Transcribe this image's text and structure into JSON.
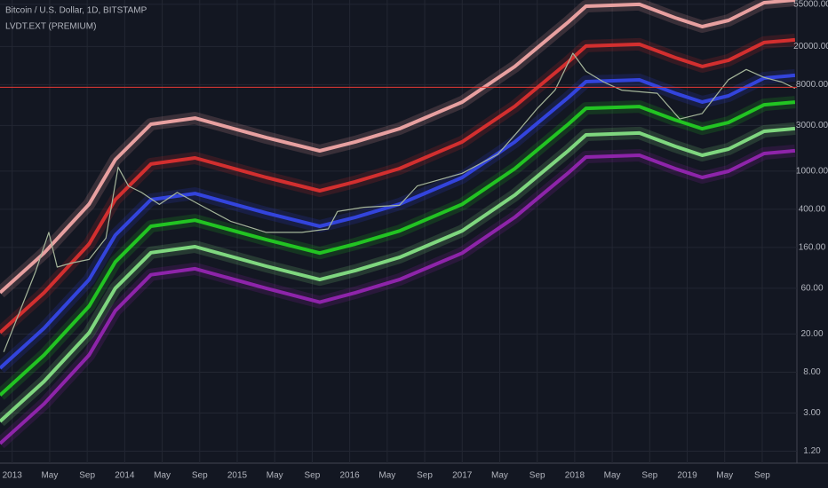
{
  "chart_data": {
    "type": "line",
    "title": "Bitcoin / U.S. Dollar, 1D, BITSTAMP",
    "subtitle": "LVDT.EXT (PREMIUM)",
    "log_scale": true,
    "grid": true,
    "xlim": [
      -1.3,
      83.7
    ],
    "xticks": [
      {
        "value": 0,
        "label": "2013"
      },
      {
        "value": 4,
        "label": "May"
      },
      {
        "value": 8,
        "label": "Sep"
      },
      {
        "value": 12,
        "label": "2014"
      },
      {
        "value": 16,
        "label": "May"
      },
      {
        "value": 20,
        "label": "Sep"
      },
      {
        "value": 24,
        "label": "2015"
      },
      {
        "value": 28,
        "label": "May"
      },
      {
        "value": 32,
        "label": "Sep"
      },
      {
        "value": 36,
        "label": "2016"
      },
      {
        "value": 40,
        "label": "May"
      },
      {
        "value": 44,
        "label": "Sep"
      },
      {
        "value": 48,
        "label": "2017"
      },
      {
        "value": 52,
        "label": "May"
      },
      {
        "value": 56,
        "label": "Sep"
      },
      {
        "value": 60,
        "label": "2018"
      },
      {
        "value": 64,
        "label": "May"
      },
      {
        "value": 68,
        "label": "Sep"
      },
      {
        "value": 72,
        "label": "2019"
      },
      {
        "value": 76,
        "label": "May"
      },
      {
        "value": 80,
        "label": "Sep"
      }
    ],
    "ylim": [
      0.9,
      61000
    ],
    "yticks": [
      {
        "value": 55000,
        "label": "55000.00"
      },
      {
        "value": 20000,
        "label": "20000.00"
      },
      {
        "value": 8000,
        "label": "8000.00"
      },
      {
        "value": 3000,
        "label": "3000.00"
      },
      {
        "value": 1000,
        "label": "1000.00"
      },
      {
        "value": 400,
        "label": "400.00"
      },
      {
        "value": 160,
        "label": "160.00"
      },
      {
        "value": 60,
        "label": "60.00"
      },
      {
        "value": 20,
        "label": "20.00"
      },
      {
        "value": 8,
        "label": "8.00"
      },
      {
        "value": 3,
        "label": "3.00"
      },
      {
        "value": 1.2,
        "label": "1.20"
      }
    ],
    "hline": 7500,
    "hline_color": "#e53935",
    "series": [
      {
        "color": "#e8a0a0",
        "x": [
          -1.3,
          3.4,
          8.2,
          11.0,
          14.8,
          19.5,
          27.1,
          32.8,
          36.6,
          41.3,
          48.0,
          53.6,
          59.3,
          61.2,
          66.9,
          70.7,
          73.6,
          76.4,
          80.2,
          83.5
        ],
        "values": [
          54,
          140,
          453,
          1316,
          3090,
          3580,
          2240,
          1628,
          2020,
          2772,
          5257,
          12350,
          35800,
          52570,
          54900,
          39870,
          32190,
          37390,
          57250,
          61000
        ]
      },
      {
        "color": "#d32f2f",
        "x": [
          -1.3,
          3.4,
          8.2,
          11.0,
          14.8,
          19.5,
          27.1,
          32.8,
          36.6,
          41.3,
          48.0,
          53.6,
          59.3,
          61.2,
          66.9,
          70.7,
          73.6,
          76.4,
          80.2,
          83.5
        ],
        "values": [
          20.7,
          54,
          174,
          505,
          1187,
          1375,
          860,
          625,
          776,
          1065,
          2019,
          4742,
          13750,
          20190,
          21080,
          15310,
          12360,
          14360,
          21980,
          23450
        ]
      },
      {
        "color": "#3344dd",
        "x": [
          -1.3,
          3.4,
          8.2,
          11.0,
          14.8,
          19.5,
          27.1,
          32.8,
          36.6,
          41.3,
          48.0,
          53.6,
          59.3,
          61.2,
          66.9,
          70.7,
          73.6,
          76.4,
          80.2,
          83.5
        ],
        "values": [
          8.8,
          23,
          74,
          215,
          505,
          585,
          366,
          266,
          330,
          453,
          859,
          2018,
          5850,
          8590,
          8970,
          6515,
          5260,
          6110,
          9355,
          9980
        ]
      },
      {
        "color": "#22c422",
        "x": [
          -1.3,
          3.4,
          8.2,
          11.0,
          14.8,
          19.5,
          27.1,
          32.8,
          36.6,
          41.3,
          48.0,
          53.6,
          59.3,
          61.2,
          66.9,
          70.7,
          73.6,
          76.4,
          80.2,
          83.5
        ],
        "values": [
          4.6,
          12.1,
          39,
          113,
          266,
          308,
          193,
          140,
          174,
          238,
          452,
          1062,
          3079,
          4521,
          4721,
          3429,
          2768,
          3216,
          4924,
          5253
        ]
      },
      {
        "color": "#7fd77f",
        "x": [
          -1.3,
          3.4,
          8.2,
          11.0,
          14.8,
          19.5,
          27.1,
          32.8,
          36.6,
          41.3,
          48.0,
          53.6,
          59.3,
          61.2,
          66.9,
          70.7,
          73.6,
          76.4,
          80.2,
          83.5
        ],
        "values": [
          2.45,
          6.4,
          20.6,
          60,
          141,
          163,
          102,
          74,
          92,
          126,
          239,
          562,
          1630,
          2393,
          2499,
          1815,
          1465,
          1702,
          2606,
          2780
        ]
      },
      {
        "color": "#8e24aa",
        "x": [
          -1.3,
          3.4,
          8.2,
          11.0,
          14.8,
          19.5,
          27.1,
          32.8,
          36.6,
          41.3,
          48.0,
          53.6,
          59.3,
          61.2,
          66.9,
          70.7,
          73.6,
          76.4,
          80.2,
          83.5
        ],
        "values": [
          1.44,
          3.74,
          12.1,
          35,
          83,
          96,
          60,
          43,
          54,
          74,
          140,
          330,
          956,
          1404,
          1466,
          1065,
          859,
          998,
          1529,
          1631
        ]
      },
      {
        "color": "#a5b59a",
        "x": [
          -0.9,
          2.5,
          3.9,
          4.8,
          6.3,
          8.2,
          10.0,
          11.3,
          12.4,
          13.8,
          15.7,
          17.6,
          20.5,
          23.3,
          27.1,
          30.9,
          33.7,
          34.7,
          37.5,
          41.3,
          43.2,
          48.0,
          51.8,
          54.1,
          56.0,
          57.9,
          59.8,
          61.2,
          63.1,
          65.0,
          68.8,
          71.2,
          73.6,
          76.4,
          78.3,
          80.2,
          82.1,
          83.5
        ],
        "values": [
          13,
          90,
          230,
          100,
          110,
          120,
          200,
          1100,
          700,
          600,
          450,
          600,
          420,
          300,
          230,
          230,
          250,
          380,
          420,
          440,
          700,
          950,
          1500,
          2700,
          4500,
          7000,
          17000,
          11000,
          8500,
          7000,
          6500,
          3500,
          4000,
          9000,
          11500,
          9500,
          8500,
          7300
        ]
      }
    ]
  }
}
